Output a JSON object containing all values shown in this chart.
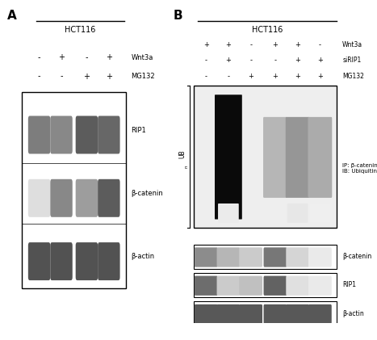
{
  "fig_width": 4.67,
  "fig_height": 4.21,
  "bg_color": "#ffffff",
  "panel_A": {
    "title": "HCT116",
    "label": "A",
    "wnt3a_row": [
      "-",
      "+",
      "-",
      "+"
    ],
    "mg132_row": [
      "-",
      "-",
      "+",
      "+"
    ],
    "row_labels_right": [
      "Wnt3a",
      "MG132"
    ],
    "rip1_intensities": [
      0.6,
      0.55,
      0.75,
      0.7
    ],
    "beta_catenin_intensities": [
      0.15,
      0.55,
      0.45,
      0.75
    ],
    "beta_actin_intensities": [
      0.8,
      0.8,
      0.8,
      0.8
    ],
    "band_labels": [
      "RIP1",
      "β-catenin",
      "β-actin"
    ]
  },
  "panel_B": {
    "title": "HCT116",
    "label": "B",
    "wnt3a_row": [
      "+",
      "+",
      "-",
      "+",
      "+",
      "-"
    ],
    "sirip1_row": [
      "-",
      "+",
      "-",
      "-",
      "+",
      "+"
    ],
    "mg132_row": [
      "-",
      "-",
      "+",
      "+",
      "+",
      "+"
    ],
    "row_labels_right": [
      "Wnt3a",
      "siRIP1",
      "MG132"
    ],
    "ub_label": "UB",
    "ub_sub": "n",
    "ip_ib_label": "IP: β-catenin\nIB: Ubiquitin",
    "main_band_intensities": [
      0.05,
      0.98,
      0.0,
      0.35,
      0.5,
      0.4
    ],
    "lower_band_intensities": [
      0.05,
      0.1,
      0.0,
      0.05,
      0.12,
      0.08
    ],
    "beta_catenin_bands": [
      0.55,
      0.35,
      0.25,
      0.65,
      0.2,
      0.1
    ],
    "rip1_bands": [
      0.7,
      0.25,
      0.3,
      0.75,
      0.15,
      0.1
    ],
    "beta_actin_bands": [
      0.8,
      0.8,
      0.8,
      0.8,
      0.8,
      0.8
    ],
    "bottom_labels": [
      "β-catenin",
      "RIP1",
      "β-actin"
    ]
  }
}
